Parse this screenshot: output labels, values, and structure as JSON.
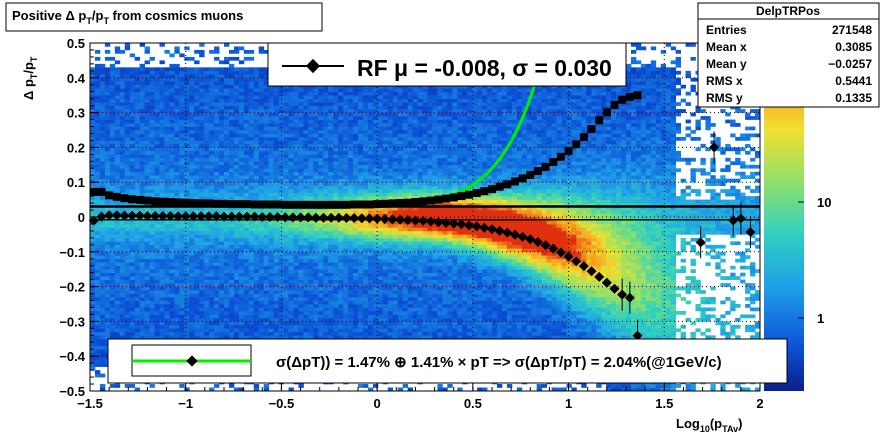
{
  "title": "Positive Δ p_T/p_T from cosmics muons",
  "title_parts": {
    "a": "Positive Δ p",
    "sub1": "T",
    "b": "/p",
    "sub2": "T",
    "c": " from cosmics muons"
  },
  "ylabel_parts": {
    "a": "Δ p",
    "sub1": "T",
    "b": "/p",
    "sub2": "T"
  },
  "xlabel_parts": {
    "a": "Log",
    "sub1": "10",
    "b": "(p",
    "sub2": "TAv",
    "c": ")"
  },
  "stats": {
    "name": "DelpTRPos",
    "rows": [
      {
        "label": "Entries",
        "value": "271548"
      },
      {
        "label": "Mean x",
        "value": "0.3085"
      },
      {
        "label": "Mean y",
        "value": "−0.0257"
      },
      {
        "label": "RMS x",
        "value": "0.5441"
      },
      {
        "label": "RMS y",
        "value": "0.1335"
      }
    ]
  },
  "legend_top": {
    "text": "RF μ = -0.008, σ =   0.030"
  },
  "legend_bottom": {
    "text": "σ(ΔpT)) =  1.47% ⊕  1.41% × pT => σ(ΔpT/pT) =  2.04%(@1GeV/c)"
  },
  "colorbar": {
    "labels": [
      "10",
      "1"
    ]
  },
  "colors": {
    "fit_line": "#00ee00",
    "marker": "#000000",
    "frame": "#000000"
  },
  "chart_data": {
    "type": "heatmap",
    "xlim": [
      -1.5,
      2.0
    ],
    "ylim": [
      -0.5,
      0.5
    ],
    "x_ticks": [
      "−1.5",
      "−1",
      "−0.5",
      "0",
      "0.5",
      "1",
      "1.5",
      "2"
    ],
    "x_tick_values": [
      -1.5,
      -1,
      -0.5,
      0,
      0.5,
      1,
      1.5,
      2
    ],
    "y_ticks": [
      "0.5",
      "0.4",
      "0.3",
      "0.2",
      "0.1",
      "0",
      "−0.1",
      "−0.2",
      "−0.3",
      "−0.4",
      "−0.5"
    ],
    "y_tick_values": [
      0.5,
      0.4,
      0.3,
      0.2,
      0.1,
      0,
      -0.1,
      -0.2,
      -0.3,
      -0.4,
      -0.5
    ],
    "grid": true,
    "sigma_series": {
      "x": [
        -1.48,
        -1.44,
        -1.4,
        -1.36,
        -1.32,
        -1.28,
        -1.24,
        -1.2,
        -1.16,
        -1.12,
        -1.08,
        -1.04,
        -1.0,
        -0.96,
        -0.92,
        -0.88,
        -0.84,
        -0.8,
        -0.76,
        -0.72,
        -0.68,
        -0.64,
        -0.6,
        -0.56,
        -0.52,
        -0.48,
        -0.44,
        -0.4,
        -0.36,
        -0.32,
        -0.28,
        -0.24,
        -0.2,
        -0.16,
        -0.12,
        -0.08,
        -0.04,
        0.0,
        0.04,
        0.08,
        0.12,
        0.16,
        0.2,
        0.24,
        0.28,
        0.32,
        0.36,
        0.4,
        0.44,
        0.48,
        0.52,
        0.56,
        0.6,
        0.64,
        0.68,
        0.72,
        0.76,
        0.8,
        0.84,
        0.88,
        0.92,
        0.96,
        1.0,
        1.04,
        1.08,
        1.12,
        1.16,
        1.2,
        1.24,
        1.28,
        1.32,
        1.36
      ],
      "y": [
        0.072,
        0.072,
        0.062,
        0.058,
        0.054,
        0.051,
        0.049,
        0.047,
        0.045,
        0.044,
        0.043,
        0.042,
        0.041,
        0.04,
        0.039,
        0.039,
        0.038,
        0.038,
        0.037,
        0.037,
        0.037,
        0.036,
        0.036,
        0.036,
        0.036,
        0.035,
        0.035,
        0.035,
        0.035,
        0.035,
        0.035,
        0.035,
        0.035,
        0.035,
        0.036,
        0.036,
        0.036,
        0.037,
        0.038,
        0.039,
        0.04,
        0.041,
        0.043,
        0.045,
        0.047,
        0.05,
        0.053,
        0.056,
        0.06,
        0.064,
        0.069,
        0.074,
        0.08,
        0.087,
        0.094,
        0.102,
        0.111,
        0.121,
        0.132,
        0.144,
        0.158,
        0.173,
        0.19,
        0.209,
        0.23,
        0.253,
        0.278,
        0.301,
        0.322,
        0.337,
        0.345,
        0.35
      ]
    },
    "mean_series": {
      "x": [
        -1.48,
        -1.44,
        -1.4,
        -1.36,
        -1.32,
        -1.28,
        -1.24,
        -1.2,
        -1.16,
        -1.12,
        -1.08,
        -1.04,
        -1.0,
        -0.96,
        -0.92,
        -0.88,
        -0.84,
        -0.8,
        -0.76,
        -0.72,
        -0.68,
        -0.64,
        -0.6,
        -0.56,
        -0.52,
        -0.48,
        -0.44,
        -0.4,
        -0.36,
        -0.32,
        -0.28,
        -0.24,
        -0.2,
        -0.16,
        -0.12,
        -0.08,
        -0.04,
        0.0,
        0.04,
        0.08,
        0.12,
        0.16,
        0.2,
        0.24,
        0.28,
        0.32,
        0.36,
        0.4,
        0.44,
        0.48,
        0.52,
        0.56,
        0.6,
        0.64,
        0.68,
        0.72,
        0.76,
        0.8,
        0.84,
        0.88,
        0.92,
        0.96,
        1.0,
        1.04,
        1.08,
        1.12,
        1.16,
        1.2,
        1.24,
        1.28,
        1.32,
        1.36,
        1.69,
        1.76,
        1.86,
        1.9,
        1.95
      ],
      "y": [
        -0.01,
        0.001,
        0.005,
        0.005,
        0.004,
        0.004,
        0.004,
        0.003,
        0.003,
        0.003,
        0.003,
        0.002,
        0.002,
        0.002,
        0.002,
        0.002,
        0.002,
        0.001,
        0.001,
        0.001,
        0.001,
        0.001,
        0.0,
        0.0,
        0.0,
        -0.001,
        -0.001,
        -0.001,
        -0.001,
        -0.002,
        -0.002,
        -0.002,
        -0.002,
        -0.003,
        -0.003,
        -0.004,
        -0.004,
        -0.005,
        -0.006,
        -0.007,
        -0.008,
        -0.009,
        -0.01,
        -0.011,
        -0.013,
        -0.015,
        -0.017,
        -0.019,
        -0.021,
        -0.024,
        -0.027,
        -0.031,
        -0.035,
        -0.04,
        -0.045,
        -0.051,
        -0.057,
        -0.064,
        -0.072,
        -0.081,
        -0.091,
        -0.102,
        -0.114,
        -0.127,
        -0.141,
        -0.156,
        -0.172,
        -0.189,
        -0.206,
        -0.223,
        -0.232,
        -0.341,
        -0.073,
        0.2,
        -0.01,
        -0.004,
        -0.043
      ]
    },
    "fit_curve": {
      "label": "RF",
      "mu": -0.008,
      "sigma": 0.03
    },
    "flat_line_y": 0.03,
    "zero_line_y": -0.008
  }
}
